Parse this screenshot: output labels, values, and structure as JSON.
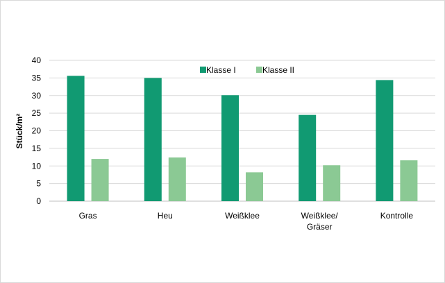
{
  "chart_data": {
    "type": "bar",
    "categories": [
      [
        "Gras"
      ],
      [
        "Heu"
      ],
      [
        "Weißklee"
      ],
      [
        "Weißklee/",
        "Gräser"
      ],
      [
        "Kontrolle"
      ]
    ],
    "series": [
      {
        "name": "Klasse I",
        "color": "#119a72",
        "values": [
          35.6,
          35.0,
          30.1,
          24.5,
          34.4
        ]
      },
      {
        "name": "Klasse II",
        "color": "#8bc994",
        "values": [
          12.0,
          12.4,
          8.2,
          10.2,
          11.6
        ]
      }
    ],
    "ylabel": "Stück/m²",
    "ylim": [
      0,
      40
    ],
    "yticks": [
      0,
      5,
      10,
      15,
      20,
      25,
      30,
      35,
      40
    ],
    "legend": "top",
    "grid": true
  }
}
